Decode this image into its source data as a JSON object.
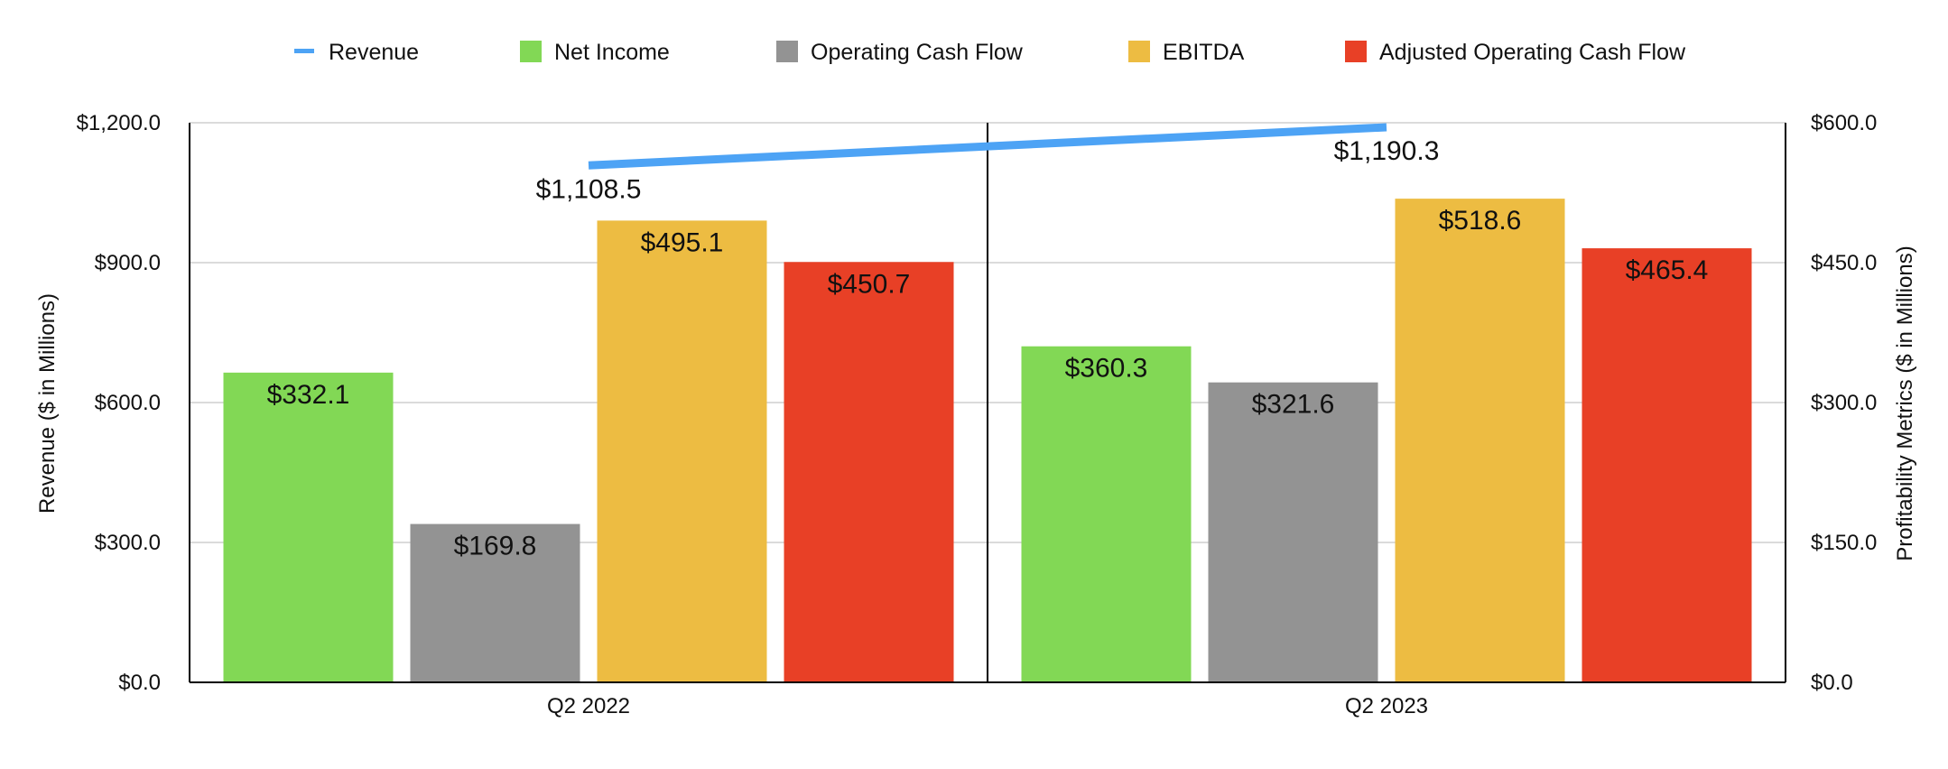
{
  "chart_data": {
    "type": "bar",
    "categories": [
      "Q2 2022",
      "Q2 2023"
    ],
    "ylabel": "Revenue ($ in Millions)",
    "y2label": "Profitability Metrics ($ in Millions)",
    "ylim": [
      0,
      1200
    ],
    "y2lim": [
      0,
      600
    ],
    "yticks": [
      "$0.0",
      "$300.0",
      "$600.0",
      "$900.0",
      "$1,200.0"
    ],
    "y2ticks": [
      "$0.0",
      "$150.0",
      "$300.0",
      "$450.0",
      "$600.0"
    ],
    "grid": true,
    "legend_position": "top",
    "line_series": {
      "name": "Revenue",
      "color": "#4DA3F5",
      "axis": "left",
      "values": [
        1108.5,
        1190.3
      ],
      "labels": [
        "$1,108.5",
        "$1,190.3"
      ]
    },
    "series": [
      {
        "name": "Net Income",
        "color": "#82D855",
        "axis": "right",
        "values": [
          332.1,
          360.3
        ],
        "labels": [
          "$332.1",
          "$360.3"
        ]
      },
      {
        "name": "Operating Cash Flow",
        "color": "#939393",
        "axis": "right",
        "values": [
          169.8,
          321.6
        ],
        "labels": [
          "$169.8",
          "$321.6"
        ]
      },
      {
        "name": "EBITDA",
        "color": "#EDBC42",
        "axis": "right",
        "values": [
          495.1,
          518.6
        ],
        "labels": [
          "$495.1",
          "$518.6"
        ]
      },
      {
        "name": "Adjusted Operating Cash Flow",
        "color": "#E84026",
        "axis": "right",
        "values": [
          450.7,
          465.4
        ],
        "labels": [
          "$450.7",
          "$465.4"
        ]
      }
    ]
  }
}
